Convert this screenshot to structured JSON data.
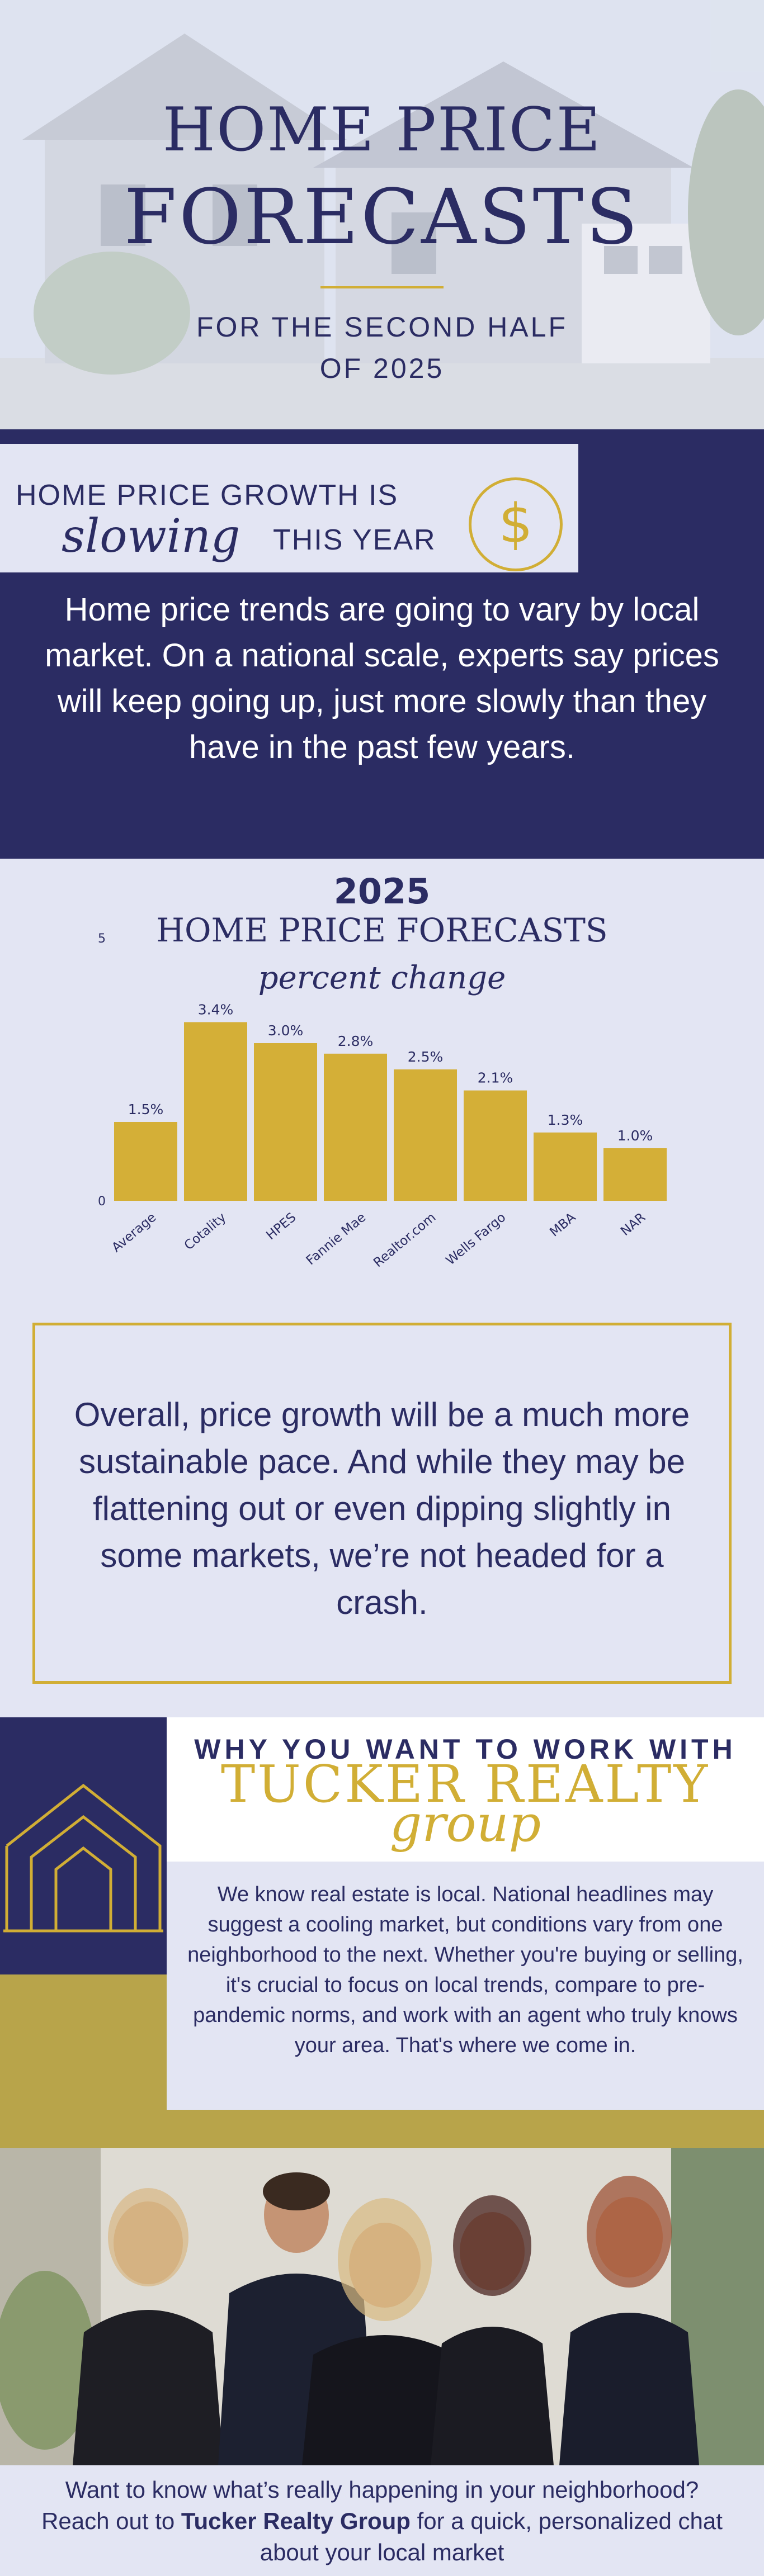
{
  "hero": {
    "title_line1": "HOME PRICE",
    "title_line2": "FORECASTS",
    "subtitle_line1": "FOR THE SECOND HALF",
    "subtitle_line2": "OF 2025"
  },
  "growth": {
    "banner_line1": "HOME PRICE GROWTH IS",
    "banner_script": "slowing",
    "banner_line2": "THIS YEAR",
    "icon": "dollar-circle-icon",
    "paragraph": "Home price trends are going to vary by local market. On a national scale, experts say prices will keep going up, just more slowly than they have in the past few years."
  },
  "chart_data": {
    "type": "bar",
    "title": "2025",
    "subtitle": "HOME PRICE FORECASTS",
    "subtitle_script": "percent change",
    "categories": [
      "Average",
      "Cotality",
      "HPES",
      "Fannie Mae",
      "Realtor.com",
      "Wells Fargo",
      "MBA",
      "NAR"
    ],
    "values": [
      1.5,
      3.4,
      3.0,
      2.8,
      2.5,
      2.1,
      1.3,
      1.0
    ],
    "value_labels": [
      "1.5%",
      "3.4%",
      "3.0%",
      "2.8%",
      "2.5%",
      "2.1%",
      "1.3%",
      "1.0%"
    ],
    "y_ticks": [
      "0",
      "5"
    ],
    "ylim": [
      0,
      5
    ],
    "bar_color": "#d4af37",
    "grid": false,
    "legend": "none"
  },
  "quote": {
    "text": "Overall, price growth will be a much more sustainable pace.  And while they may be flattening out or even dipping slightly in some markets, we’re not headed for a crash."
  },
  "tucker": {
    "heading": "WHY YOU WANT TO WORK WITH",
    "brand": "TUCKER REALTY",
    "brand_script": "group",
    "logo_icon": "house-outline-logo",
    "description": "We know real estate is local. National headlines may suggest a cooling market, but conditions vary from one neighborhood to the next. Whether you're buying or selling, it's crucial to focus on local trends, compare to pre-pandemic norms, and work with an agent who truly knows your area. That's where we come in."
  },
  "footer": {
    "text_before": "Want to know what’s really happening in your neighborhood? Reach out to ",
    "brand": "Tucker Realty Group",
    "text_after": " for a quick, personalized chat about your local market"
  },
  "colors": {
    "navy": "#2b2c63",
    "gold": "#d1ae35",
    "lavender": "#e3e5f3",
    "olive": "#b8a44a"
  }
}
